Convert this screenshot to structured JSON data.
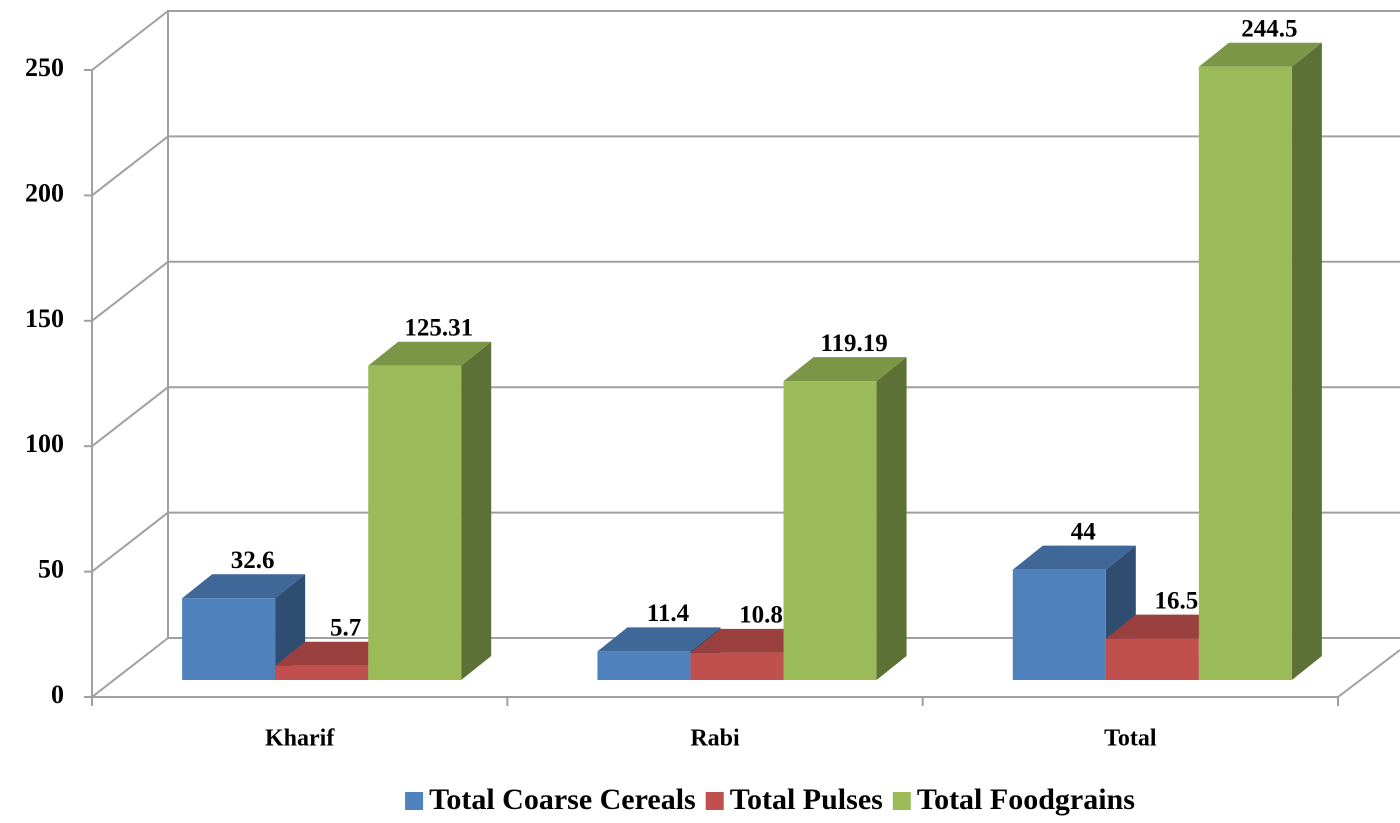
{
  "chart_data": {
    "type": "bar3d",
    "categories": [
      "Kharif",
      "Rabi",
      "Total"
    ],
    "series": [
      {
        "name": "Total Coarse Cereals",
        "color": "#4f81bd",
        "values": [
          32.6,
          11.4,
          44
        ]
      },
      {
        "name": "Total Pulses",
        "color": "#c0504d",
        "values": [
          5.7,
          10.8,
          16.5
        ]
      },
      {
        "name": "Total Foodgrains",
        "color": "#9bbb59",
        "values": [
          125.31,
          119.19,
          244.5
        ]
      }
    ],
    "ylim": [
      0,
      250
    ],
    "yticks": [
      0,
      50,
      100,
      150,
      200,
      250
    ],
    "grid": true,
    "legend": "bottom"
  }
}
